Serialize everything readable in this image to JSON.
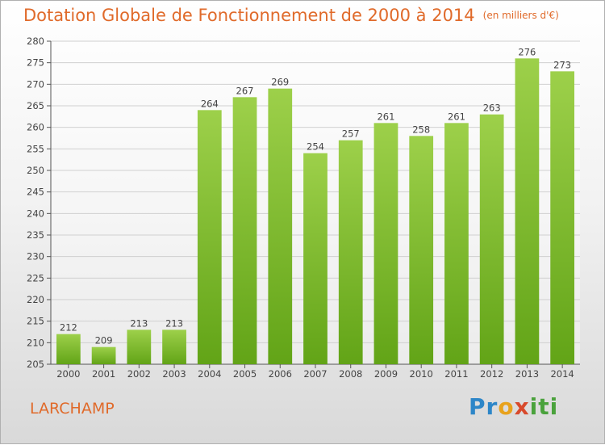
{
  "title": "Dotation Globale de Fonctionnement de 2000 à 2014",
  "unit_label": "(en milliers d'€)",
  "commune": "LARCHAMP",
  "logo": {
    "text": "Proxiti",
    "colors": [
      "#2d86c8",
      "#e8a21c",
      "#d84a2c",
      "#4aa23c"
    ]
  },
  "colors": {
    "bar_light": "#9dd04a",
    "bar_dark": "#62a417",
    "title": "#e06a2a",
    "grid": "#d0d0d0"
  },
  "chart_data": {
    "type": "bar",
    "categories": [
      "2000",
      "2001",
      "2002",
      "2003",
      "2004",
      "2005",
      "2006",
      "2007",
      "2008",
      "2009",
      "2010",
      "2011",
      "2012",
      "2013",
      "2014"
    ],
    "values": [
      212,
      209,
      213,
      213,
      264,
      267,
      269,
      254,
      257,
      261,
      258,
      261,
      263,
      276,
      273
    ],
    "ylim": [
      205,
      280
    ],
    "yticks": [
      205,
      210,
      215,
      220,
      225,
      230,
      235,
      240,
      245,
      250,
      255,
      260,
      265,
      270,
      275,
      280
    ],
    "grid": true,
    "title": "Dotation Globale de Fonctionnement de 2000 à 2014"
  }
}
